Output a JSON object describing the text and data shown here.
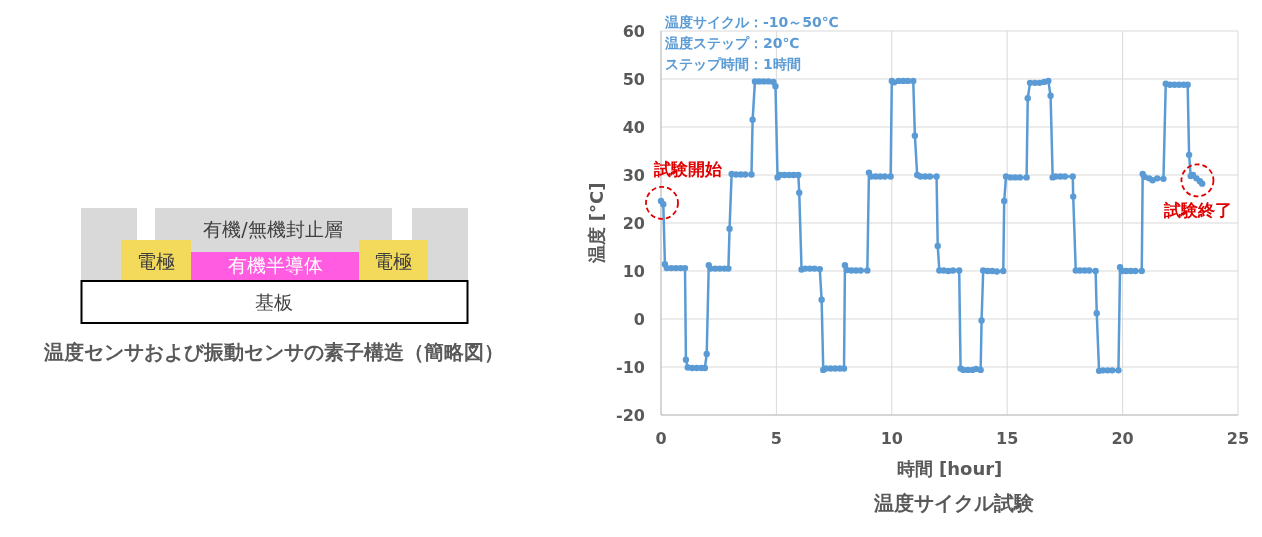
{
  "chart_data": [
    {
      "type": "other",
      "title": "温度センサおよび振動センサの素子構造（簡略図）",
      "annotations": [
        "有機/無機封止層",
        "電極",
        "有機半導体",
        "電極",
        "基板"
      ]
    },
    {
      "type": "line",
      "title": "温度サイクル試験",
      "xlabel": "時間 [hour]",
      "ylabel": "温度 [°C]",
      "x": [
        0.0,
        0.1,
        0.17,
        0.25,
        0.45,
        0.65,
        0.85,
        1.04,
        1.08,
        1.16,
        1.35,
        1.55,
        1.75,
        1.9,
        1.98,
        2.07,
        2.15,
        2.35,
        2.55,
        2.75,
        2.92,
        2.97,
        3.06,
        3.25,
        3.45,
        3.65,
        3.92,
        3.97,
        4.07,
        4.25,
        4.45,
        4.65,
        4.87,
        4.96,
        5.05,
        5.15,
        5.35,
        5.55,
        5.75,
        5.95,
        5.99,
        6.09,
        6.25,
        6.45,
        6.65,
        6.88,
        6.96,
        7.03,
        7.15,
        7.35,
        7.55,
        7.75,
        7.93,
        7.97,
        8.05,
        8.25,
        8.45,
        8.65,
        8.94,
        9.01,
        9.1,
        9.3,
        9.5,
        9.7,
        9.95,
        10.0,
        10.1,
        10.3,
        10.5,
        10.7,
        10.93,
        11.0,
        11.1,
        11.25,
        11.45,
        11.65,
        11.94,
        11.99,
        12.06,
        12.25,
        12.45,
        12.65,
        12.92,
        12.98,
        13.1,
        13.3,
        13.5,
        13.65,
        13.85,
        13.89,
        13.96,
        14.15,
        14.35,
        14.55,
        14.83,
        14.87,
        14.95,
        15.15,
        15.35,
        15.55,
        15.84,
        15.89,
        15.99,
        16.2,
        16.4,
        16.6,
        16.78,
        16.88,
        16.97,
        17.1,
        17.3,
        17.5,
        17.84,
        17.86,
        17.97,
        18.15,
        18.35,
        18.55,
        18.83,
        18.88,
        18.98,
        19.15,
        19.35,
        19.55,
        19.82,
        19.89,
        19.97,
        20.15,
        20.35,
        20.55,
        20.83,
        20.87,
        20.95,
        21.15,
        21.3,
        21.5,
        21.77,
        21.87,
        22.05,
        22.25,
        22.45,
        22.65,
        22.82,
        22.88,
        22.95,
        23.05,
        23.2,
        23.35,
        23.45
      ],
      "series": [
        {
          "color": "#5b9bd5",
          "values": [
            24.6,
            23.9,
            11.4,
            10.6,
            10.6,
            10.6,
            10.6,
            10.6,
            -8.5,
            -10.1,
            -10.2,
            -10.2,
            -10.2,
            -10.2,
            -7.3,
            11.2,
            10.5,
            10.5,
            10.5,
            10.5,
            10.5,
            18.8,
            30.2,
            30.1,
            30.1,
            30.1,
            30.1,
            41.5,
            49.5,
            49.5,
            49.5,
            49.5,
            49.4,
            48.5,
            29.5,
            30.0,
            30.0,
            30.0,
            30.0,
            30.0,
            26.3,
            10.3,
            10.5,
            10.5,
            10.5,
            10.4,
            4.0,
            -10.6,
            -10.3,
            -10.3,
            -10.3,
            -10.3,
            -10.3,
            11.2,
            10.2,
            10.1,
            10.1,
            10.1,
            10.1,
            30.5,
            29.7,
            29.7,
            29.7,
            29.7,
            29.7,
            49.6,
            49.3,
            49.6,
            49.6,
            49.6,
            49.6,
            38.2,
            30.0,
            29.7,
            29.7,
            29.7,
            29.7,
            15.2,
            10.1,
            10.1,
            10.0,
            10.1,
            10.1,
            -10.3,
            -10.6,
            -10.6,
            -10.6,
            -10.4,
            -10.6,
            -0.3,
            10.1,
            10.0,
            10.0,
            9.9,
            10.0,
            24.6,
            29.7,
            29.5,
            29.5,
            29.5,
            29.5,
            46.0,
            49.2,
            49.2,
            49.2,
            49.4,
            49.6,
            46.5,
            29.5,
            29.7,
            29.7,
            29.7,
            29.7,
            25.5,
            10.1,
            10.1,
            10.1,
            10.1,
            10.0,
            1.2,
            -10.8,
            -10.7,
            -10.7,
            -10.7,
            -10.7,
            10.8,
            10.0,
            10.0,
            10.0,
            10.0,
            10.0,
            30.2,
            29.6,
            29.3,
            28.9,
            29.3,
            29.2,
            49.0,
            48.8,
            48.8,
            48.8,
            48.8,
            48.8,
            34.2,
            29.8,
            30.0,
            29.3,
            28.7,
            28.2
          ]
        }
      ],
      "xlim": [
        0,
        25
      ],
      "xticks": [
        0,
        5,
        10,
        15,
        20,
        25
      ],
      "ylim": [
        -20,
        60
      ],
      "yticks": [
        -20,
        -10,
        0,
        10,
        20,
        30,
        40,
        50,
        60
      ],
      "grid": true,
      "marker": "circle",
      "line_style": "solid",
      "annotations": [
        "温度サイクル：-10～50℃",
        "温度ステップ：20℃",
        "ステップ時間：1時間",
        {
          "text": "試験開始",
          "x": 0,
          "y": 24.6
        },
        {
          "text": "試験終了",
          "x": 23.2,
          "y": 29.3
        }
      ]
    }
  ]
}
